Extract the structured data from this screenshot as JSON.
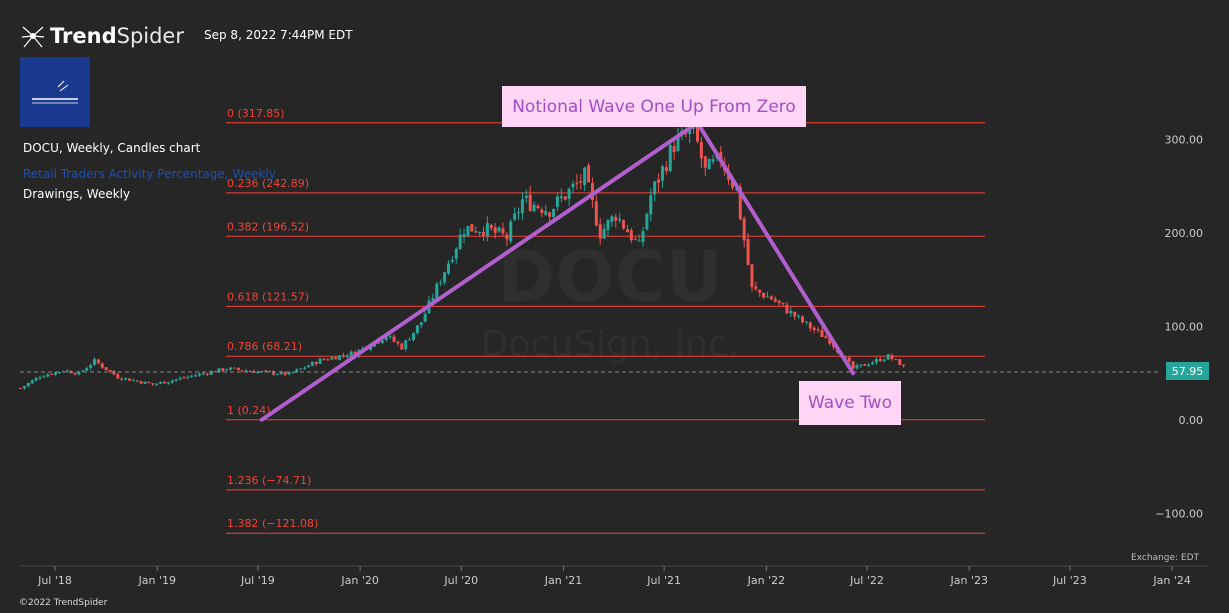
{
  "header": {
    "brand_bold": "Trend",
    "brand_light": "Spider",
    "date": "Sep 8, 2022 7:44PM EDT"
  },
  "legend": {
    "line1": "DOCU, Weekly, Candles chart",
    "line2": "Retail Traders Activity Percentage, Weekly",
    "line3": "Drawings, Weekly"
  },
  "watermark": {
    "ticker": "DOCU",
    "company": "DocuSign, Inc."
  },
  "callouts": {
    "wave_one": "Notional Wave One Up From Zero",
    "wave_two": "Wave Two"
  },
  "price_badge": "57.95",
  "footer": {
    "exchange": "Exchange: EDT",
    "copyright": "©2022 TrendSpider"
  },
  "colors": {
    "background": "#262626",
    "up": "#26a69a",
    "down": "#ef5350",
    "fib": "#f44336",
    "wave": "#b05fcc",
    "callout_bg": "#ffd6f5"
  },
  "chart_data": {
    "type": "candlestick",
    "symbol": "DOCU",
    "interval": "Weekly",
    "last_price": 57.95,
    "ylim": [
      -140,
      345
    ],
    "y_ticks": [
      {
        "value": 300,
        "label": "300.00"
      },
      {
        "value": 200,
        "label": "200.00"
      },
      {
        "value": 100,
        "label": "100.00"
      },
      {
        "value": 0,
        "label": "0.00"
      },
      {
        "value": -100,
        "label": "−100.00"
      }
    ],
    "x_ticks": [
      {
        "date": "2018-07-01",
        "label": "Jul '18"
      },
      {
        "date": "2019-01-01",
        "label": "Jan '19"
      },
      {
        "date": "2019-07-01",
        "label": "Jul '19"
      },
      {
        "date": "2020-01-01",
        "label": "Jan '20"
      },
      {
        "date": "2020-07-01",
        "label": "Jul '20"
      },
      {
        "date": "2021-01-01",
        "label": "Jan '21"
      },
      {
        "date": "2021-07-01",
        "label": "Jul '21"
      },
      {
        "date": "2022-01-01",
        "label": "Jan '22"
      },
      {
        "date": "2022-07-01",
        "label": "Jul '22"
      },
      {
        "date": "2023-01-01",
        "label": "Jan '23"
      },
      {
        "date": "2023-07-01",
        "label": "Jul '23"
      },
      {
        "date": "2024-01-01",
        "label": "Jan '24"
      }
    ],
    "fib_levels": [
      {
        "ratio": 0,
        "value": 317.85,
        "label": "0 (317.85)"
      },
      {
        "ratio": 0.236,
        "value": 242.89,
        "label": "0.236 (242.89)"
      },
      {
        "ratio": 0.382,
        "value": 196.52,
        "label": "0.382 (196.52)"
      },
      {
        "ratio": 0.618,
        "value": 121.57,
        "label": "0.618 (121.57)"
      },
      {
        "ratio": 0.786,
        "value": 68.21,
        "label": "0.786 (68.21)"
      },
      {
        "ratio": 1,
        "value": 0.24,
        "label": "1 (0.24)"
      },
      {
        "ratio": 1.236,
        "value": -74.71,
        "label": "1.236 (−74.71)"
      },
      {
        "ratio": 1.382,
        "value": -121.08,
        "label": "1.382 (−121.08)"
      }
    ],
    "trendlines": [
      {
        "start": {
          "date": "2019-07-08",
          "value": 0.24
        },
        "end": {
          "date": "2021-08-30",
          "value": 317.85
        }
      },
      {
        "start": {
          "date": "2021-08-30",
          "value": 317.85
        },
        "end": {
          "date": "2022-06-06",
          "value": 50
        }
      }
    ],
    "price_path": [
      {
        "date": "2018-04-30",
        "value": 34
      },
      {
        "date": "2018-06-04",
        "value": 47
      },
      {
        "date": "2018-07-16",
        "value": 53
      },
      {
        "date": "2018-08-13",
        "value": 50
      },
      {
        "date": "2018-09-10",
        "value": 63
      },
      {
        "date": "2018-10-22",
        "value": 46
      },
      {
        "date": "2018-12-24",
        "value": 38
      },
      {
        "date": "2019-03-11",
        "value": 48
      },
      {
        "date": "2019-05-06",
        "value": 55
      },
      {
        "date": "2019-06-24",
        "value": 52
      },
      {
        "date": "2019-08-26",
        "value": 49
      },
      {
        "date": "2019-10-21",
        "value": 64
      },
      {
        "date": "2019-12-23",
        "value": 72
      },
      {
        "date": "2020-02-17",
        "value": 90
      },
      {
        "date": "2020-03-16",
        "value": 78
      },
      {
        "date": "2020-04-20",
        "value": 105
      },
      {
        "date": "2020-06-01",
        "value": 160
      },
      {
        "date": "2020-07-06",
        "value": 205
      },
      {
        "date": "2020-08-10",
        "value": 205
      },
      {
        "date": "2020-09-21",
        "value": 195
      },
      {
        "date": "2020-10-19",
        "value": 235
      },
      {
        "date": "2020-12-07",
        "value": 225
      },
      {
        "date": "2021-02-08",
        "value": 260
      },
      {
        "date": "2021-03-08",
        "value": 200
      },
      {
        "date": "2021-04-05",
        "value": 220
      },
      {
        "date": "2021-05-17",
        "value": 185
      },
      {
        "date": "2021-06-07",
        "value": 240
      },
      {
        "date": "2021-07-19",
        "value": 295
      },
      {
        "date": "2021-08-23",
        "value": 310
      },
      {
        "date": "2021-09-13",
        "value": 265
      },
      {
        "date": "2021-10-11",
        "value": 280
      },
      {
        "date": "2021-11-08",
        "value": 245
      },
      {
        "date": "2021-12-06",
        "value": 140
      },
      {
        "date": "2022-01-10",
        "value": 130
      },
      {
        "date": "2022-03-07",
        "value": 105
      },
      {
        "date": "2022-04-25",
        "value": 85
      },
      {
        "date": "2022-06-06",
        "value": 55
      },
      {
        "date": "2022-07-11",
        "value": 62
      },
      {
        "date": "2022-08-08",
        "value": 68
      },
      {
        "date": "2022-09-05",
        "value": 57.95
      }
    ]
  }
}
